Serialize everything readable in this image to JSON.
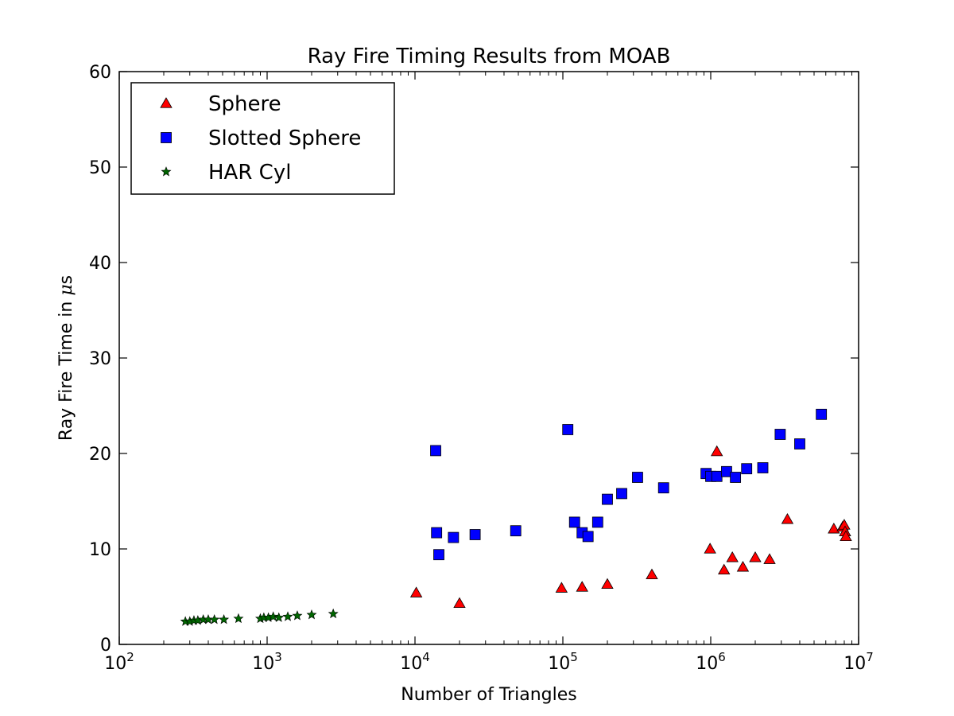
{
  "chart_data": {
    "type": "scatter",
    "title": "Ray Fire Timing Results from MOAB",
    "xlabel": "Number of Triangles",
    "ylabel_prefix": "Ray Fire Time in ",
    "ylabel_mu": "μ",
    "ylabel_unit": "s",
    "x_scale": "log",
    "xlim": [
      100,
      10000000
    ],
    "ylim": [
      0,
      60
    ],
    "x_ticks": [
      {
        "value": 100,
        "base": "10",
        "exp": "2"
      },
      {
        "value": 1000,
        "base": "10",
        "exp": "3"
      },
      {
        "value": 10000,
        "base": "10",
        "exp": "4"
      },
      {
        "value": 100000,
        "base": "10",
        "exp": "5"
      },
      {
        "value": 1000000,
        "base": "10",
        "exp": "6"
      },
      {
        "value": 10000000,
        "base": "10",
        "exp": "7"
      }
    ],
    "y_ticks": [
      "0",
      "10",
      "20",
      "30",
      "40",
      "50",
      "60"
    ],
    "grid": false,
    "legend_position": "top-left",
    "series": [
      {
        "name": "Sphere",
        "marker": "triangle",
        "color": "#ff0000",
        "points": [
          [
            10200,
            5.4
          ],
          [
            20000,
            4.3
          ],
          [
            98000,
            5.9
          ],
          [
            135000,
            6.0
          ],
          [
            200000,
            6.3
          ],
          [
            400000,
            7.3
          ],
          [
            990000,
            10.0
          ],
          [
            1100000,
            20.2
          ],
          [
            1230000,
            7.8
          ],
          [
            1400000,
            9.1
          ],
          [
            1650000,
            8.1
          ],
          [
            2000000,
            9.1
          ],
          [
            2500000,
            8.9
          ],
          [
            3300000,
            13.1
          ],
          [
            6800000,
            12.1
          ],
          [
            7800000,
            12.3
          ],
          [
            8000000,
            12.5
          ],
          [
            8100000,
            11.8
          ],
          [
            8200000,
            11.3
          ]
        ]
      },
      {
        "name": "Slotted Sphere",
        "marker": "square",
        "color": "#0000ff",
        "points": [
          [
            13800,
            20.3
          ],
          [
            14000,
            11.7
          ],
          [
            14500,
            9.4
          ],
          [
            18200,
            11.2
          ],
          [
            25500,
            11.5
          ],
          [
            48000,
            11.9
          ],
          [
            108000,
            22.5
          ],
          [
            120000,
            12.8
          ],
          [
            135000,
            11.7
          ],
          [
            148000,
            11.3
          ],
          [
            172000,
            12.8
          ],
          [
            200000,
            15.2
          ],
          [
            250000,
            15.8
          ],
          [
            320000,
            17.5
          ],
          [
            480000,
            16.4
          ],
          [
            930000,
            17.9
          ],
          [
            1000000,
            17.6
          ],
          [
            1100000,
            17.6
          ],
          [
            1280000,
            18.1
          ],
          [
            1470000,
            17.5
          ],
          [
            1750000,
            18.4
          ],
          [
            2250000,
            18.5
          ],
          [
            2950000,
            22.0
          ],
          [
            4000000,
            21.0
          ],
          [
            5600000,
            24.1
          ]
        ]
      },
      {
        "name": "HAR Cyl",
        "marker": "star",
        "color": "#006600",
        "points": [
          [
            280,
            2.4
          ],
          [
            300,
            2.4
          ],
          [
            320,
            2.5
          ],
          [
            340,
            2.5
          ],
          [
            370,
            2.6
          ],
          [
            400,
            2.6
          ],
          [
            440,
            2.6
          ],
          [
            510,
            2.6
          ],
          [
            640,
            2.7
          ],
          [
            900,
            2.7
          ],
          [
            950,
            2.8
          ],
          [
            1020,
            2.8
          ],
          [
            1100,
            2.9
          ],
          [
            1200,
            2.8
          ],
          [
            1380,
            2.9
          ],
          [
            1600,
            3.0
          ],
          [
            2000,
            3.1
          ],
          [
            2800,
            3.2
          ]
        ]
      }
    ]
  }
}
